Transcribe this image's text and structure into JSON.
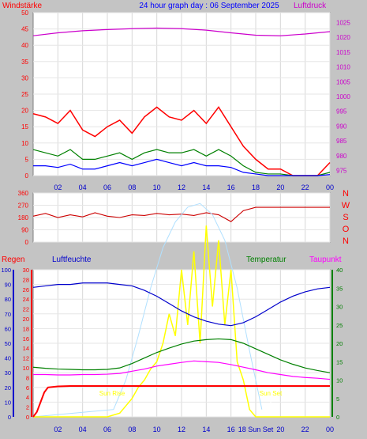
{
  "title": "24 hour graph day : 06 September 2025",
  "colors": {
    "background": "#c4c4c4",
    "plot": "#ffffff",
    "wind": "#ff0000",
    "gust": "#008000",
    "wind_avg": "#0000ff",
    "pressure": "#cc00cc",
    "direction": "#cc0000",
    "rain": "#ff0000",
    "humidity": "#0000cc",
    "temperature": "#008000",
    "dewpoint": "#ff00ff",
    "solar": "#ffff00",
    "solar_clear": "#b0e0ff"
  },
  "x_ticks": [
    "02",
    "04",
    "06",
    "08",
    "10",
    "12",
    "14",
    "16",
    "18",
    "20",
    "22",
    "00"
  ],
  "chart_data": [
    {
      "type": "line",
      "id": "wind_pressure",
      "left_label": "Windstärke",
      "right_label": "Luftdruck",
      "y_ticks": [
        0,
        5,
        10,
        15,
        20,
        25,
        30,
        35,
        40,
        45,
        50
      ],
      "y2_ticks": [
        975,
        980,
        985,
        990,
        995,
        1000,
        1005,
        1010,
        1015,
        1020,
        1025
      ],
      "ylim": [
        0,
        50
      ],
      "y2lim": [
        973.3,
        1028.3
      ],
      "xlim": [
        0,
        24
      ],
      "series": [
        {
          "role": "gust",
          "x": [
            0,
            1,
            2,
            3,
            4,
            5,
            6,
            7,
            8,
            9,
            10,
            11,
            12,
            13,
            14,
            15,
            16,
            17,
            18,
            19,
            20,
            21,
            22,
            23,
            24
          ],
          "y": [
            19,
            18,
            16,
            20,
            14,
            12,
            15,
            17,
            13,
            18,
            21,
            18,
            17,
            20,
            16,
            21,
            15,
            9,
            5,
            2,
            2,
            0,
            0,
            0,
            4
          ]
        },
        {
          "role": "wind",
          "x": [
            0,
            1,
            2,
            3,
            4,
            5,
            6,
            7,
            8,
            9,
            10,
            11,
            12,
            13,
            14,
            15,
            16,
            17,
            18,
            19,
            20,
            21,
            22,
            23,
            24
          ],
          "y": [
            8,
            7,
            6,
            8,
            5,
            5,
            6,
            7,
            5,
            7,
            8,
            7,
            7,
            8,
            6,
            8,
            6,
            3,
            1,
            0.5,
            0.5,
            0,
            0,
            0,
            1
          ]
        },
        {
          "role": "wind_avg",
          "x": [
            0,
            1,
            2,
            3,
            4,
            5,
            6,
            7,
            8,
            9,
            10,
            11,
            12,
            13,
            14,
            15,
            16,
            17,
            18,
            19,
            20,
            21,
            22,
            23,
            24
          ],
          "y": [
            3,
            3,
            2.5,
            3.5,
            2,
            2,
            3,
            4,
            3,
            4,
            5,
            4,
            3,
            4,
            3,
            3,
            2.5,
            1,
            0.5,
            0,
            0,
            0,
            0,
            0,
            0.3
          ]
        },
        {
          "role": "pressure",
          "x": [
            0,
            2,
            4,
            6,
            8,
            10,
            12,
            14,
            16,
            18,
            20,
            22,
            24
          ],
          "y": [
            1020.5,
            1021.5,
            1022.2,
            1022.6,
            1022.9,
            1023.1,
            1022.9,
            1022.4,
            1021.5,
            1020.7,
            1020.5,
            1021.1,
            1021.9
          ]
        }
      ]
    },
    {
      "type": "line",
      "id": "wind_direction",
      "y_ticks": [
        0,
        90,
        180,
        270,
        360
      ],
      "compass": [
        "N",
        "W",
        "S",
        "O",
        "N"
      ],
      "ylim": [
        0,
        360
      ],
      "xlim": [
        0,
        24
      ],
      "series": [
        {
          "role": "direction",
          "x": [
            0,
            1,
            2,
            3,
            4,
            5,
            6,
            7,
            8,
            9,
            10,
            11,
            12,
            13,
            14,
            15,
            16,
            17,
            18,
            19,
            20,
            21,
            22,
            23,
            24
          ],
          "y": [
            190,
            210,
            180,
            200,
            185,
            215,
            190,
            180,
            200,
            195,
            210,
            200,
            205,
            195,
            215,
            200,
            150,
            230,
            255,
            255,
            255,
            255,
            255,
            255,
            255
          ]
        }
      ]
    },
    {
      "type": "line",
      "id": "climate",
      "left_labels": [
        "Regen",
        "Luftfeuchte"
      ],
      "right_labels": [
        "Temperatur",
        "Taupunkt"
      ],
      "y_ticks_humidity": [
        0,
        10,
        20,
        30,
        40,
        50,
        60,
        70,
        80,
        90,
        100
      ],
      "y_ticks_rain": [
        0,
        2,
        4,
        6,
        8,
        10,
        12,
        14,
        16,
        18,
        20,
        22,
        24,
        26,
        28,
        30
      ],
      "y_ticks_temp": [
        0,
        5,
        10,
        15,
        20,
        25,
        30,
        35,
        40
      ],
      "ylim": [
        0,
        100
      ],
      "xlim": [
        0,
        24
      ],
      "annotations": {
        "sun_rise": "Sun Rise",
        "sun_set": "Sun Set",
        "x_end": "18 Sun Set"
      },
      "series": [
        {
          "role": "humidity",
          "x": [
            0,
            1,
            2,
            3,
            4,
            5,
            6,
            7,
            8,
            9,
            10,
            11,
            12,
            13,
            14,
            15,
            16,
            17,
            18,
            19,
            20,
            21,
            22,
            23,
            24
          ],
          "y": [
            88,
            89,
            90,
            90,
            91,
            91,
            91,
            90,
            89,
            86,
            82,
            77,
            72,
            68,
            65,
            63,
            62,
            64,
            68,
            73,
            78,
            82,
            85,
            87,
            88
          ]
        },
        {
          "role": "temperature",
          "x": [
            0,
            1,
            2,
            3,
            4,
            5,
            6,
            7,
            8,
            9,
            10,
            11,
            12,
            13,
            14,
            15,
            16,
            17,
            18,
            19,
            20,
            21,
            22,
            23,
            24
          ],
          "y": [
            13.5,
            13.2,
            13.0,
            12.9,
            12.8,
            12.8,
            12.9,
            13.3,
            14.5,
            16,
            17.5,
            18.7,
            19.8,
            20.6,
            21,
            21.2,
            21,
            20,
            18.5,
            17,
            15.5,
            14.3,
            13.3,
            12.6,
            12
          ]
        },
        {
          "role": "dewpoint",
          "x": [
            0,
            1,
            2,
            3,
            4,
            5,
            6,
            7,
            8,
            9,
            10,
            11,
            12,
            13,
            14,
            15,
            16,
            17,
            18,
            19,
            20,
            21,
            22,
            23,
            24
          ],
          "y": [
            11.5,
            11.5,
            11.4,
            11.4,
            11.5,
            11.5,
            11.6,
            11.8,
            12.4,
            13,
            13.8,
            14.3,
            14.8,
            15.2,
            15,
            14.8,
            14.2,
            13.5,
            12.8,
            12,
            11.5,
            11,
            10.7,
            10.5,
            10.2
          ]
        },
        {
          "role": "rain",
          "x": [
            0,
            0.3,
            0.6,
            0.9,
            1.2,
            2,
            3,
            4,
            6,
            8,
            10,
            12,
            14,
            16,
            18,
            20,
            22,
            24
          ],
          "y": [
            0,
            1,
            3,
            5,
            6,
            6.2,
            6.3,
            6.3,
            6.3,
            6.3,
            6.3,
            6.3,
            6.3,
            6.3,
            6.3,
            6.3,
            6.3,
            6.3
          ]
        },
        {
          "role": "solar",
          "x": [
            0,
            6,
            7,
            7.5,
            8,
            8.5,
            9,
            9.5,
            10,
            10.5,
            11,
            11.5,
            12,
            12.5,
            13,
            13.5,
            14,
            14.5,
            15,
            15.5,
            16,
            16.5,
            17,
            17.5,
            18,
            24
          ],
          "y": [
            0,
            0,
            1,
            3,
            5,
            8,
            10,
            13,
            15,
            20,
            28,
            22,
            40,
            25,
            45,
            20,
            52,
            30,
            48,
            25,
            40,
            15,
            10,
            2,
            0,
            0
          ]
        },
        {
          "role": "solar_clear",
          "x": [
            0,
            6.5,
            7.5,
            8.5,
            9.5,
            10.5,
            11.5,
            12.5,
            13.5,
            14.5,
            15.5,
            16.5,
            17.5,
            18.5
          ],
          "y": [
            0,
            2,
            10,
            22,
            35,
            46,
            53,
            57,
            58,
            55,
            48,
            35,
            18,
            2
          ]
        }
      ]
    }
  ]
}
